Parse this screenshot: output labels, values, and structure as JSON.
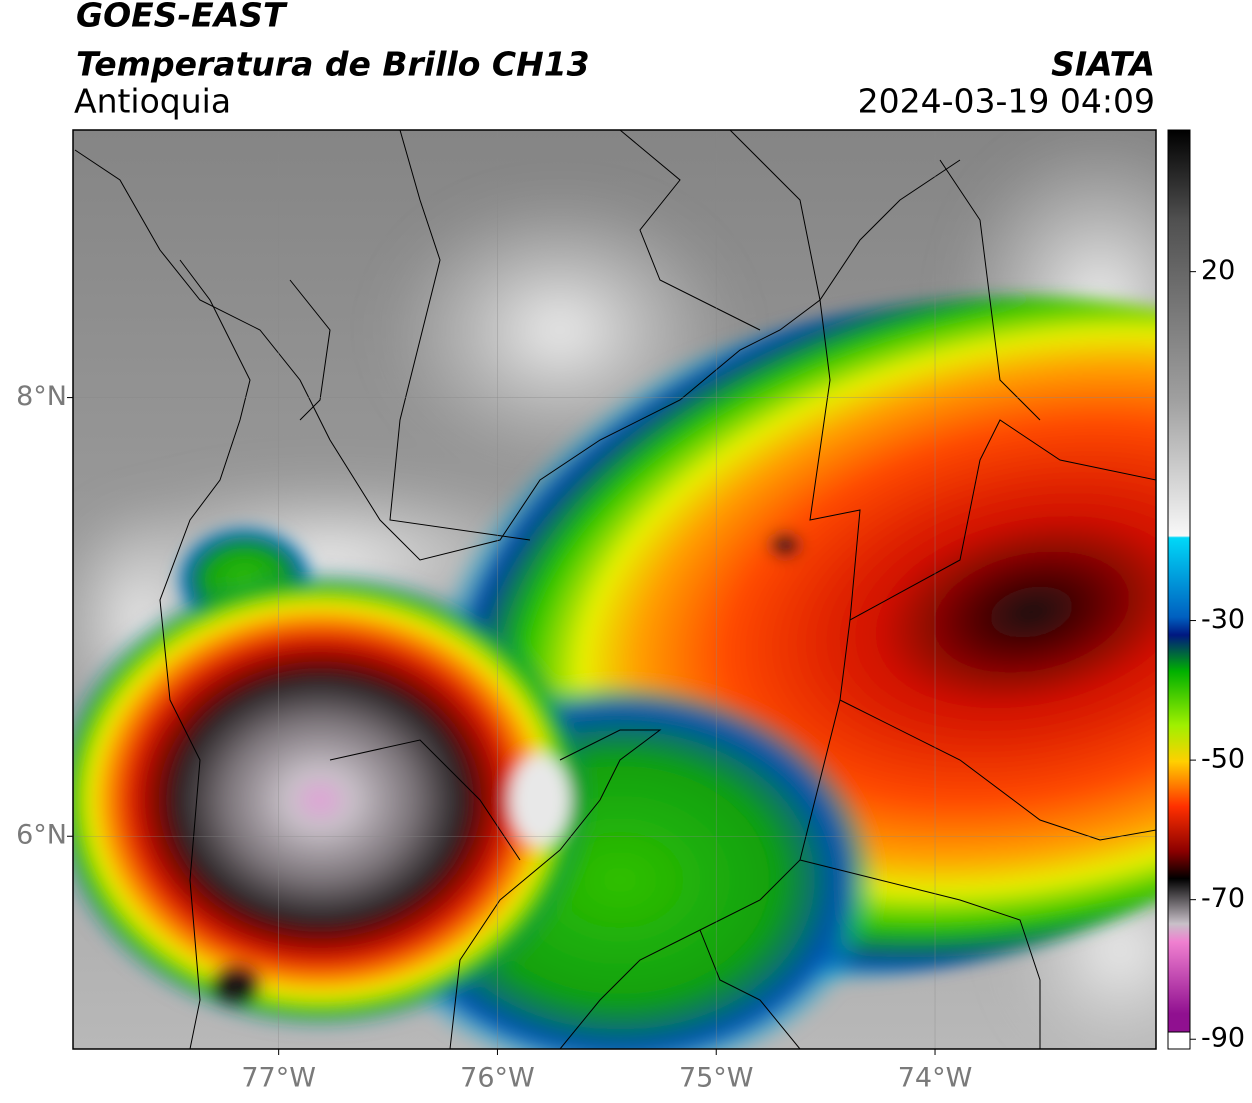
{
  "header": {
    "title": "GOES-EAST",
    "subtitle": "Temperatura de Brillo CH13",
    "region": "Antioquia",
    "source": "SIATA",
    "timestamp": "2024-03-19 04:09"
  },
  "map": {
    "xlim": [
      -77.94,
      -72.99
    ],
    "ylim": [
      5.03,
      9.22
    ],
    "xticks": [
      {
        "value": -77,
        "label": "77°W"
      },
      {
        "value": -76,
        "label": "76°W"
      },
      {
        "value": -75,
        "label": "75°W"
      },
      {
        "value": -74,
        "label": "74°W"
      }
    ],
    "yticks": [
      {
        "value": 8,
        "label": "8°N"
      },
      {
        "value": 6,
        "label": "6°N"
      }
    ],
    "grid": true
  },
  "colorbar": {
    "lim": [
      -91.4,
      40.3
    ],
    "ticks": [
      20,
      -30,
      -50,
      -70,
      -90
    ]
  }
}
